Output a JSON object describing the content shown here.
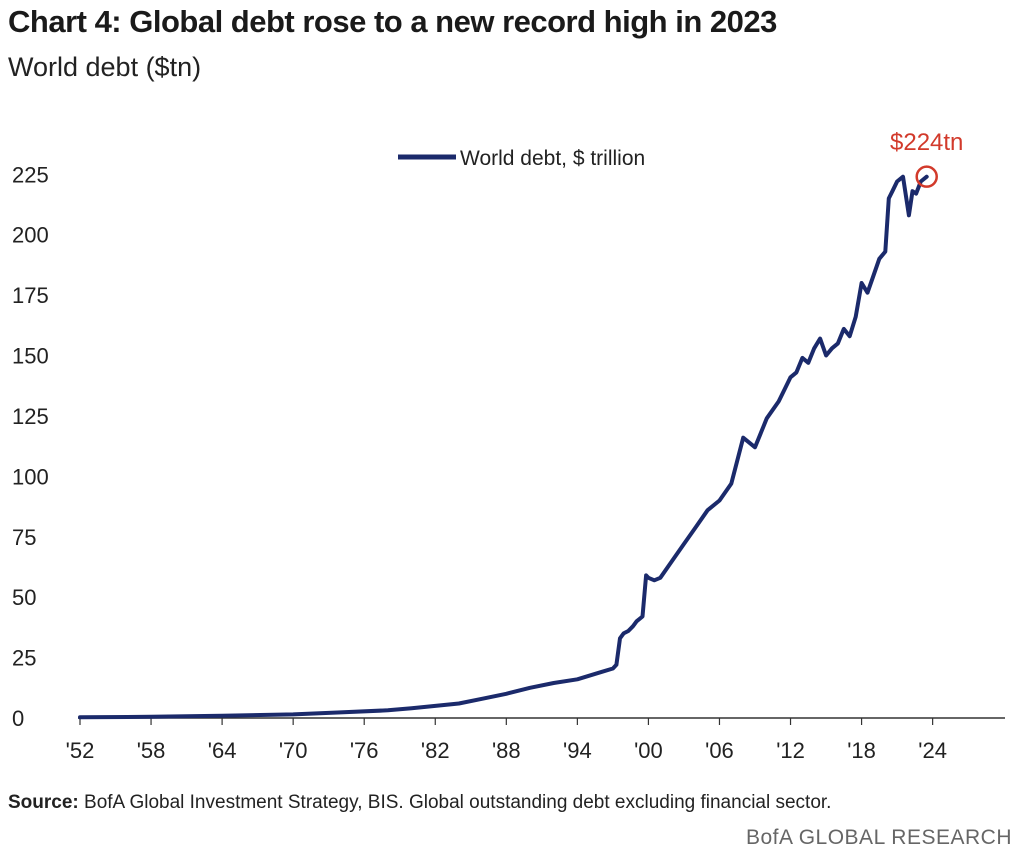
{
  "title": "Chart 4: Global debt rose to a new record high in 2023",
  "subtitle": "World debt ($tn)",
  "source_label": "Source:",
  "source_text": " BofA Global Investment Strategy, BIS. Global outstanding debt excluding financial sector.",
  "brand": "BofA GLOBAL RESEARCH",
  "colors": {
    "series": "#1b2a6b",
    "annotation": "#d23a2b",
    "axis": "#333333"
  },
  "chart_data": {
    "type": "line",
    "title": "Chart 4: Global debt rose to a new record high in 2023",
    "ylim": [
      0,
      240
    ],
    "xlim": [
      1952,
      2028
    ],
    "y_ticks": [
      0,
      25,
      50,
      75,
      100,
      125,
      150,
      175,
      200,
      225
    ],
    "x_tick_labels": [
      "'52",
      "'58",
      "'64",
      "'70",
      "'76",
      "'82",
      "'88",
      "'94",
      "'00",
      "'06",
      "'12",
      "'18",
      "'24"
    ],
    "x_tick_years": [
      1952,
      1958,
      1964,
      1970,
      1976,
      1982,
      1988,
      1994,
      2000,
      2006,
      2012,
      2018,
      2024
    ],
    "grid": false,
    "legend": "top-center",
    "annotation": {
      "text": "$224tn",
      "x": 2023.5,
      "y": 224
    },
    "series": [
      {
        "name": "World debt, $ trillion",
        "x": [
          1952,
          1958,
          1964,
          1970,
          1974,
          1978,
          1980,
          1982,
          1984,
          1986,
          1988,
          1990,
          1992,
          1994,
          1996,
          1997,
          1997.3,
          1997.6,
          1997.9,
          1998.3,
          1998.7,
          1999,
          1999.5,
          1999.8,
          2000,
          2000.5,
          2001,
          2002,
          2003,
          2004,
          2005,
          2006,
          2007,
          2008,
          2009,
          2010,
          2011,
          2012,
          2012.5,
          2013,
          2013.5,
          2014,
          2014.5,
          2015,
          2015.5,
          2016,
          2016.5,
          2017,
          2017.5,
          2018,
          2018.5,
          2019,
          2019.5,
          2020,
          2020.3,
          2020.6,
          2021,
          2021.5,
          2022,
          2022.3,
          2022.6,
          2023,
          2023.5
        ],
        "values": [
          0.3,
          0.5,
          0.9,
          1.5,
          2.3,
          3.2,
          4,
          5,
          6,
          8,
          10,
          12.5,
          14.5,
          16,
          19,
          20.5,
          22,
          33,
          35,
          36,
          38,
          40,
          42,
          59,
          58,
          57,
          58,
          65,
          72,
          79,
          86,
          90,
          97,
          116,
          112,
          124,
          131,
          141,
          143,
          149,
          147,
          153,
          157,
          150,
          153,
          155,
          161,
          158,
          166,
          180,
          176,
          183,
          190,
          193,
          215,
          218,
          222,
          224,
          208,
          218,
          217,
          222,
          224
        ]
      }
    ]
  }
}
